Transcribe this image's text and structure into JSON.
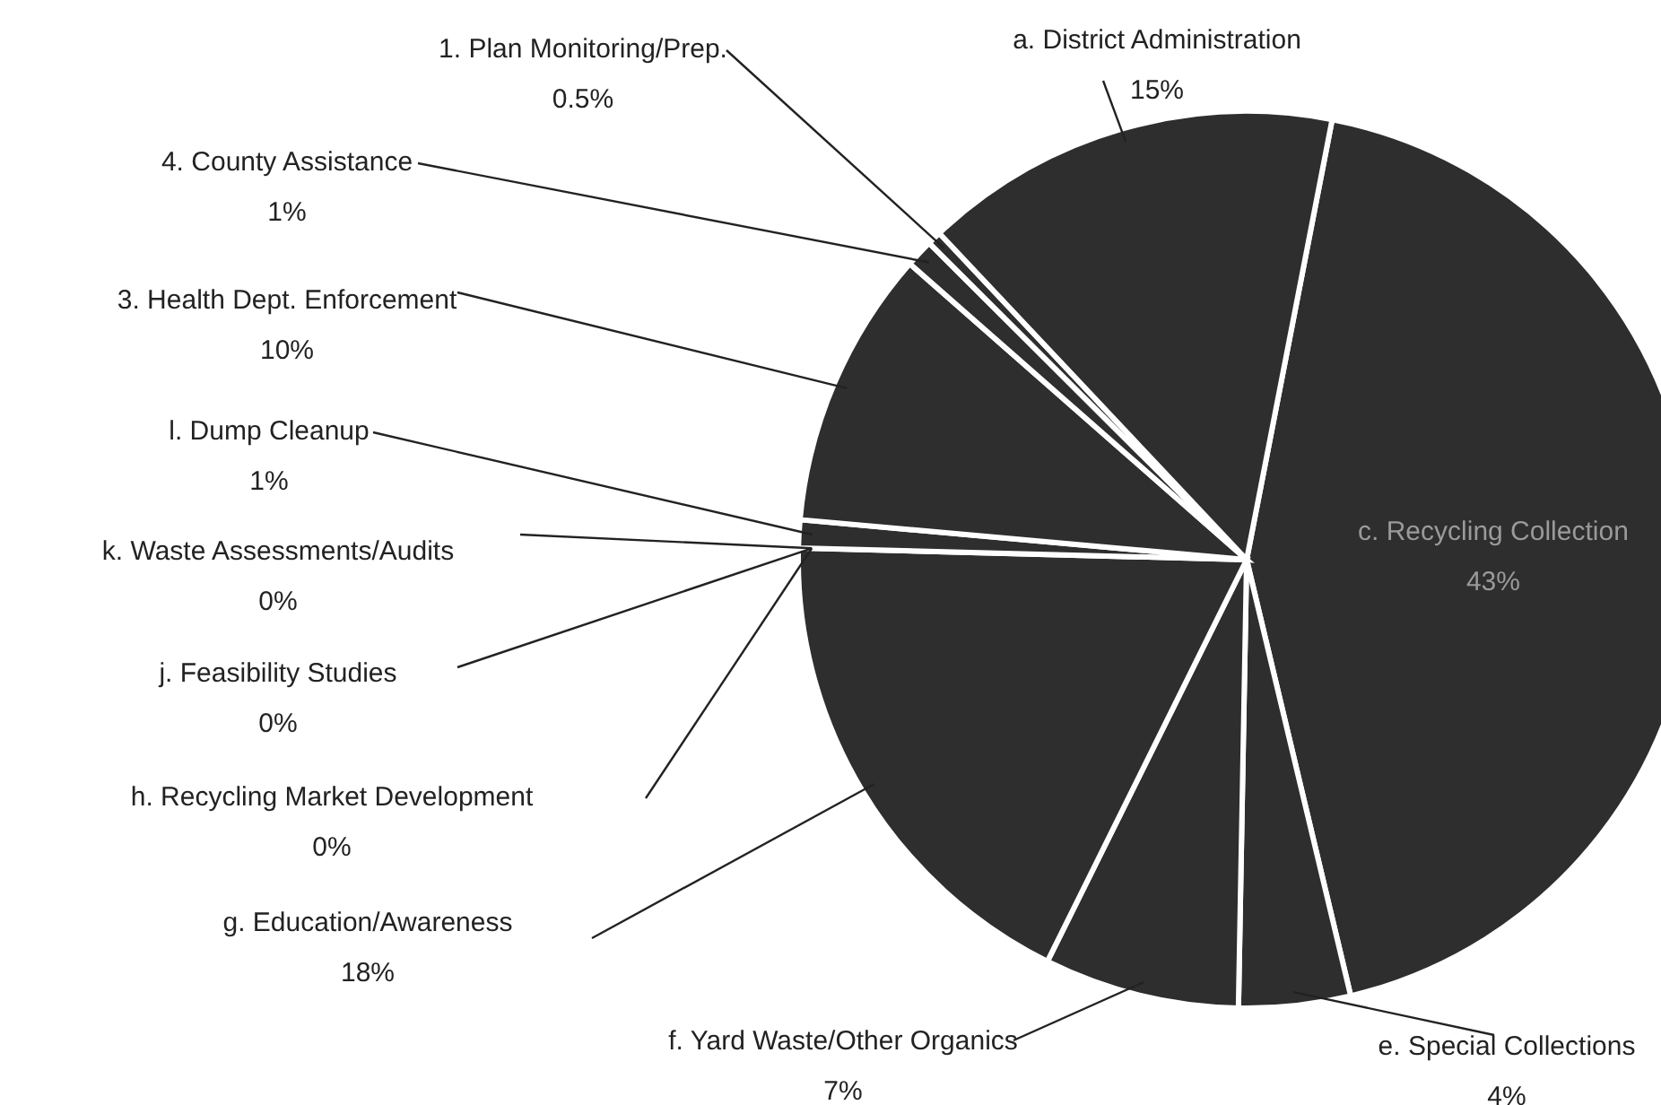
{
  "chart_data": {
    "type": "pie",
    "categories": [
      "c.  Recycling Collection",
      "e.  Special Collections",
      "f.  Yard Waste/Other Organics",
      "g.  Education/Awareness",
      "h.  Recycling Market Development",
      "j.  Feasibility Studies",
      "k.  Waste Assessments/Audits",
      "l.  Dump Cleanup",
      "3.  Health Dept. Enforcement",
      "4.  County Assistance",
      "1.  Plan Monitoring/Prep.",
      "a.  District Administration"
    ],
    "values": [
      43,
      4,
      7,
      18,
      0,
      0,
      0,
      1,
      10,
      1,
      0.5,
      15
    ],
    "value_labels": [
      "43%",
      "4%",
      "7%",
      "18%",
      "0%",
      "0%",
      "0%",
      "1%",
      "10%",
      "1%",
      "0.5%",
      "15%"
    ],
    "colors": [
      "#2e2e2e",
      "#2e2e2e",
      "#2e2e2e",
      "#2e2e2e",
      "#2e2e2e",
      "#2e2e2e",
      "#2e2e2e",
      "#2e2e2e",
      "#2e2e2e",
      "#2e2e2e",
      "#2e2e2e",
      "#2e2e2e"
    ]
  }
}
